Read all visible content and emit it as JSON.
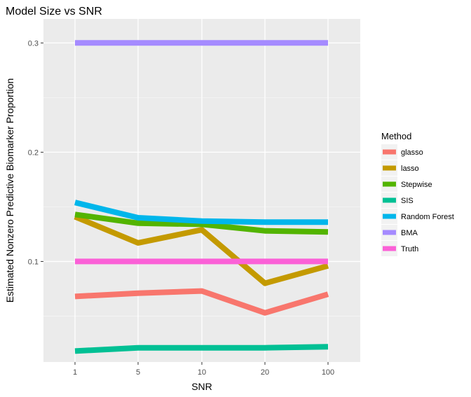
{
  "chart_data": {
    "type": "line",
    "title": "Model Size vs SNR",
    "xlabel": "SNR",
    "ylabel": "Estimated Nonzero Predictive Biomarker Proportion",
    "categories": [
      "1",
      "5",
      "10",
      "20",
      "100"
    ],
    "yticks": [
      "0.1",
      "0.2",
      "0.3"
    ],
    "ylim": [
      0.008,
      0.322
    ],
    "grid": true,
    "background": "#ebebeb",
    "legend": {
      "title": "Method",
      "placement": "right"
    },
    "series": [
      {
        "name": "glasso",
        "color": "#F8766D",
        "values": [
          0.068,
          0.071,
          0.073,
          0.053,
          0.07
        ]
      },
      {
        "name": "lasso",
        "color": "#C49A00",
        "values": [
          0.141,
          0.117,
          0.129,
          0.08,
          0.096
        ]
      },
      {
        "name": "Stepwise",
        "color": "#53B400",
        "values": [
          0.143,
          0.135,
          0.134,
          0.128,
          0.127
        ]
      },
      {
        "name": "SIS",
        "color": "#00C094",
        "values": [
          0.018,
          0.021,
          0.021,
          0.021,
          0.022
        ]
      },
      {
        "name": "Random Forest",
        "color": "#00B6EB",
        "values": [
          0.154,
          0.14,
          0.137,
          0.136,
          0.136
        ]
      },
      {
        "name": "BMA",
        "color": "#A58AFF",
        "values": [
          0.3,
          0.3,
          0.3,
          0.3,
          0.3
        ]
      },
      {
        "name": "Truth",
        "color": "#FB61D7",
        "values": [
          0.1,
          0.1,
          0.1,
          0.1,
          0.1
        ]
      }
    ]
  }
}
